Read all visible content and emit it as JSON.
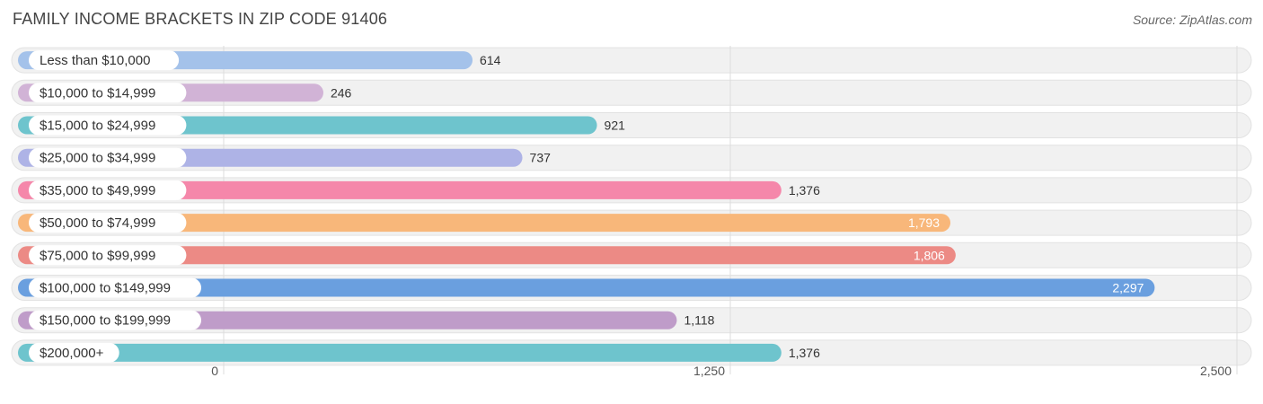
{
  "title": "FAMILY INCOME BRACKETS IN ZIP CODE 91406",
  "source": "Source: ZipAtlas.com",
  "chart_data": {
    "type": "bar",
    "orientation": "horizontal",
    "categories": [
      "Less than $10,000",
      "$10,000 to $14,999",
      "$15,000 to $24,999",
      "$25,000 to $34,999",
      "$35,000 to $49,999",
      "$50,000 to $74,999",
      "$75,000 to $99,999",
      "$100,000 to $149,999",
      "$150,000 to $199,999",
      "$200,000+"
    ],
    "values": [
      614,
      246,
      921,
      737,
      1376,
      1793,
      1806,
      2297,
      1118,
      1376
    ],
    "value_labels": [
      "614",
      "246",
      "921",
      "737",
      "1,376",
      "1,793",
      "1,806",
      "2,297",
      "1,118",
      "1,376"
    ],
    "colors": [
      "#a4c2ea",
      "#d1b3d6",
      "#6ec4cd",
      "#aeb3e6",
      "#f587aa",
      "#f8b77a",
      "#ec8a85",
      "#6a9fdf",
      "#bf9cc9",
      "#6ec4cd"
    ],
    "xlim": [
      0,
      2500
    ],
    "xticks": [
      0,
      1250,
      2500
    ],
    "xtick_labels": [
      "0",
      "1,250",
      "2,500"
    ],
    "grid": true
  }
}
